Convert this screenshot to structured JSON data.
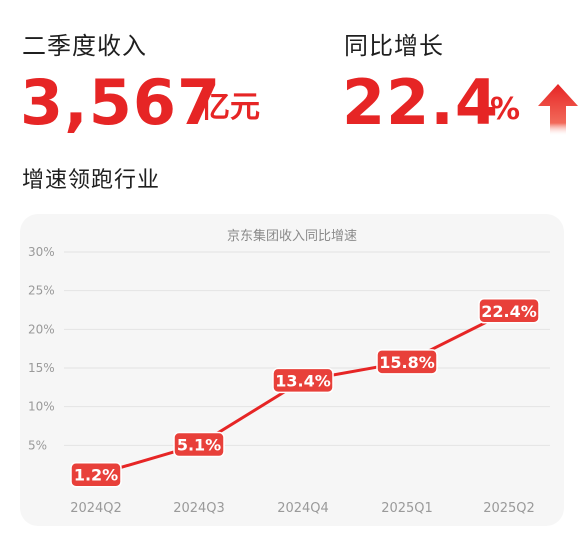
{
  "header": {
    "revenue_label": "二季度收入",
    "revenue_value": "3,567",
    "revenue_unit": "亿元",
    "growth_label": "同比增长",
    "growth_value": "22.4",
    "growth_unit": "%",
    "subtitle": "增速领跑行业",
    "arrow_icon": "up-arrow-icon"
  },
  "colors": {
    "accent": "#e62525",
    "label_bg": "#e8403a",
    "card_bg": "#f6f6f6"
  },
  "chart_data": {
    "type": "line",
    "title": "京东集团收入同比增速",
    "categories": [
      "2024Q2",
      "2024Q3",
      "2024Q4",
      "2025Q1",
      "2025Q2"
    ],
    "series": [
      {
        "values": [
          1.2,
          5.1,
          13.4,
          15.8,
          22.4
        ]
      }
    ],
    "data_labels": [
      "1.2%",
      "5.1%",
      "13.4%",
      "15.8%",
      "22.4%"
    ],
    "yticks": [
      "5%",
      "10%",
      "15%",
      "20%",
      "25%",
      "30%"
    ],
    "ytick_values": [
      5,
      10,
      15,
      20,
      25,
      30
    ],
    "ylim": [
      0,
      30
    ],
    "grid": true,
    "legend": "none"
  }
}
